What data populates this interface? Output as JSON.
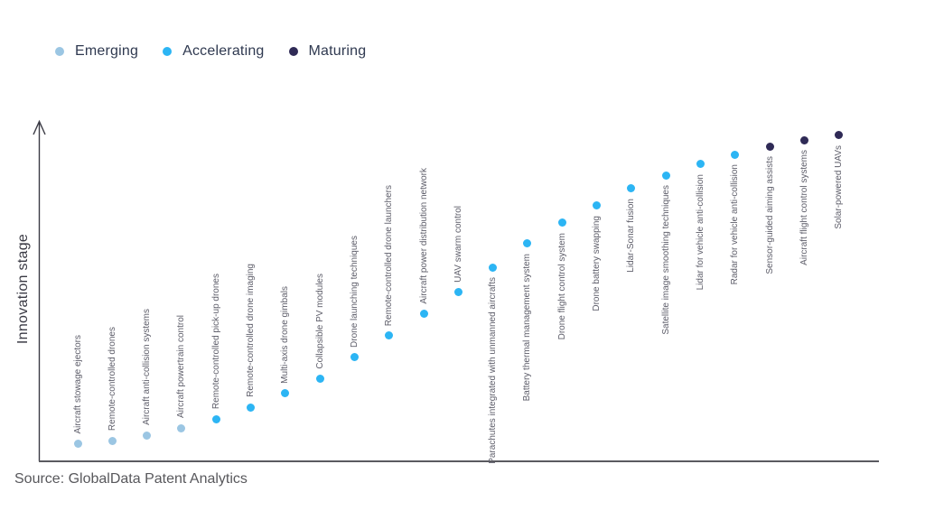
{
  "page": {
    "background": "#ffffff"
  },
  "legend": {
    "items": [
      {
        "label": "Emerging",
        "color": "#9bc6e3"
      },
      {
        "label": "Accelerating",
        "color": "#2cb5f4"
      },
      {
        "label": "Maturing",
        "color": "#2f2a56"
      }
    ]
  },
  "source": {
    "text": "Source: GlobalData Patent Analytics"
  },
  "chart_data": {
    "type": "scatter",
    "title": "",
    "xlabel": "",
    "ylabel": "Innovation stage",
    "ylim": [
      0,
      100
    ],
    "grid": false,
    "axis_ticks_visible": false,
    "legend_position": "top-left",
    "curve_shape": "s-curve ascending left to right",
    "stage_colors": {
      "Emerging": "#9bc6e3",
      "Accelerating": "#2cb5f4",
      "Maturing": "#2f2a56"
    },
    "points": [
      {
        "label": "Aircraft stowage ejectors",
        "stage": "Emerging",
        "value": 5.0
      },
      {
        "label": "Remote-controlled drones",
        "stage": "Emerging",
        "value": 6.0
      },
      {
        "label": "Aircraft anti-collision systems",
        "stage": "Emerging",
        "value": 7.6
      },
      {
        "label": "Aircraft powertrain control",
        "stage": "Emerging",
        "value": 9.7
      },
      {
        "label": "Remote-controlled pick-up drones",
        "stage": "Accelerating",
        "value": 12.3
      },
      {
        "label": "Remote-controlled drone imaging",
        "stage": "Accelerating",
        "value": 15.7
      },
      {
        "label": "Multi-axis drone gimbals",
        "stage": "Accelerating",
        "value": 19.7
      },
      {
        "label": "Collapsible PV modules",
        "stage": "Accelerating",
        "value": 24.1
      },
      {
        "label": "Drone launching techniques",
        "stage": "Accelerating",
        "value": 30.2
      },
      {
        "label": "Remote-controlled drone launchers",
        "stage": "Accelerating",
        "value": 36.5
      },
      {
        "label": "Aircraft power distribution network",
        "stage": "Accelerating",
        "value": 42.8
      },
      {
        "label": "UAV swarm control",
        "stage": "Accelerating",
        "value": 49.1
      },
      {
        "label": "Parachutes integrated with unmanned aircrafts",
        "stage": "Accelerating",
        "value": 56.4
      },
      {
        "label": "Battery thermal management system",
        "stage": "Accelerating",
        "value": 63.3
      },
      {
        "label": "Drone flight control system",
        "stage": "Accelerating",
        "value": 69.3
      },
      {
        "label": "Drone battery swapping",
        "stage": "Accelerating",
        "value": 74.3
      },
      {
        "label": "Lidar-Sonar fusion",
        "stage": "Accelerating",
        "value": 79.3
      },
      {
        "label": "Satellite image smoothing techniques",
        "stage": "Accelerating",
        "value": 83.2
      },
      {
        "label": "Lidar for vehicle anti-collision",
        "stage": "Accelerating",
        "value": 86.4
      },
      {
        "label": "Radar for vehicle anti-collision",
        "stage": "Accelerating",
        "value": 89.2
      },
      {
        "label": "Sensor-guided aiming assists",
        "stage": "Maturing",
        "value": 91.6
      },
      {
        "label": "Aircraft flight control systems",
        "stage": "Maturing",
        "value": 93.4
      },
      {
        "label": "Solar-powered UAVs",
        "stage": "Maturing",
        "value": 94.8
      }
    ]
  }
}
